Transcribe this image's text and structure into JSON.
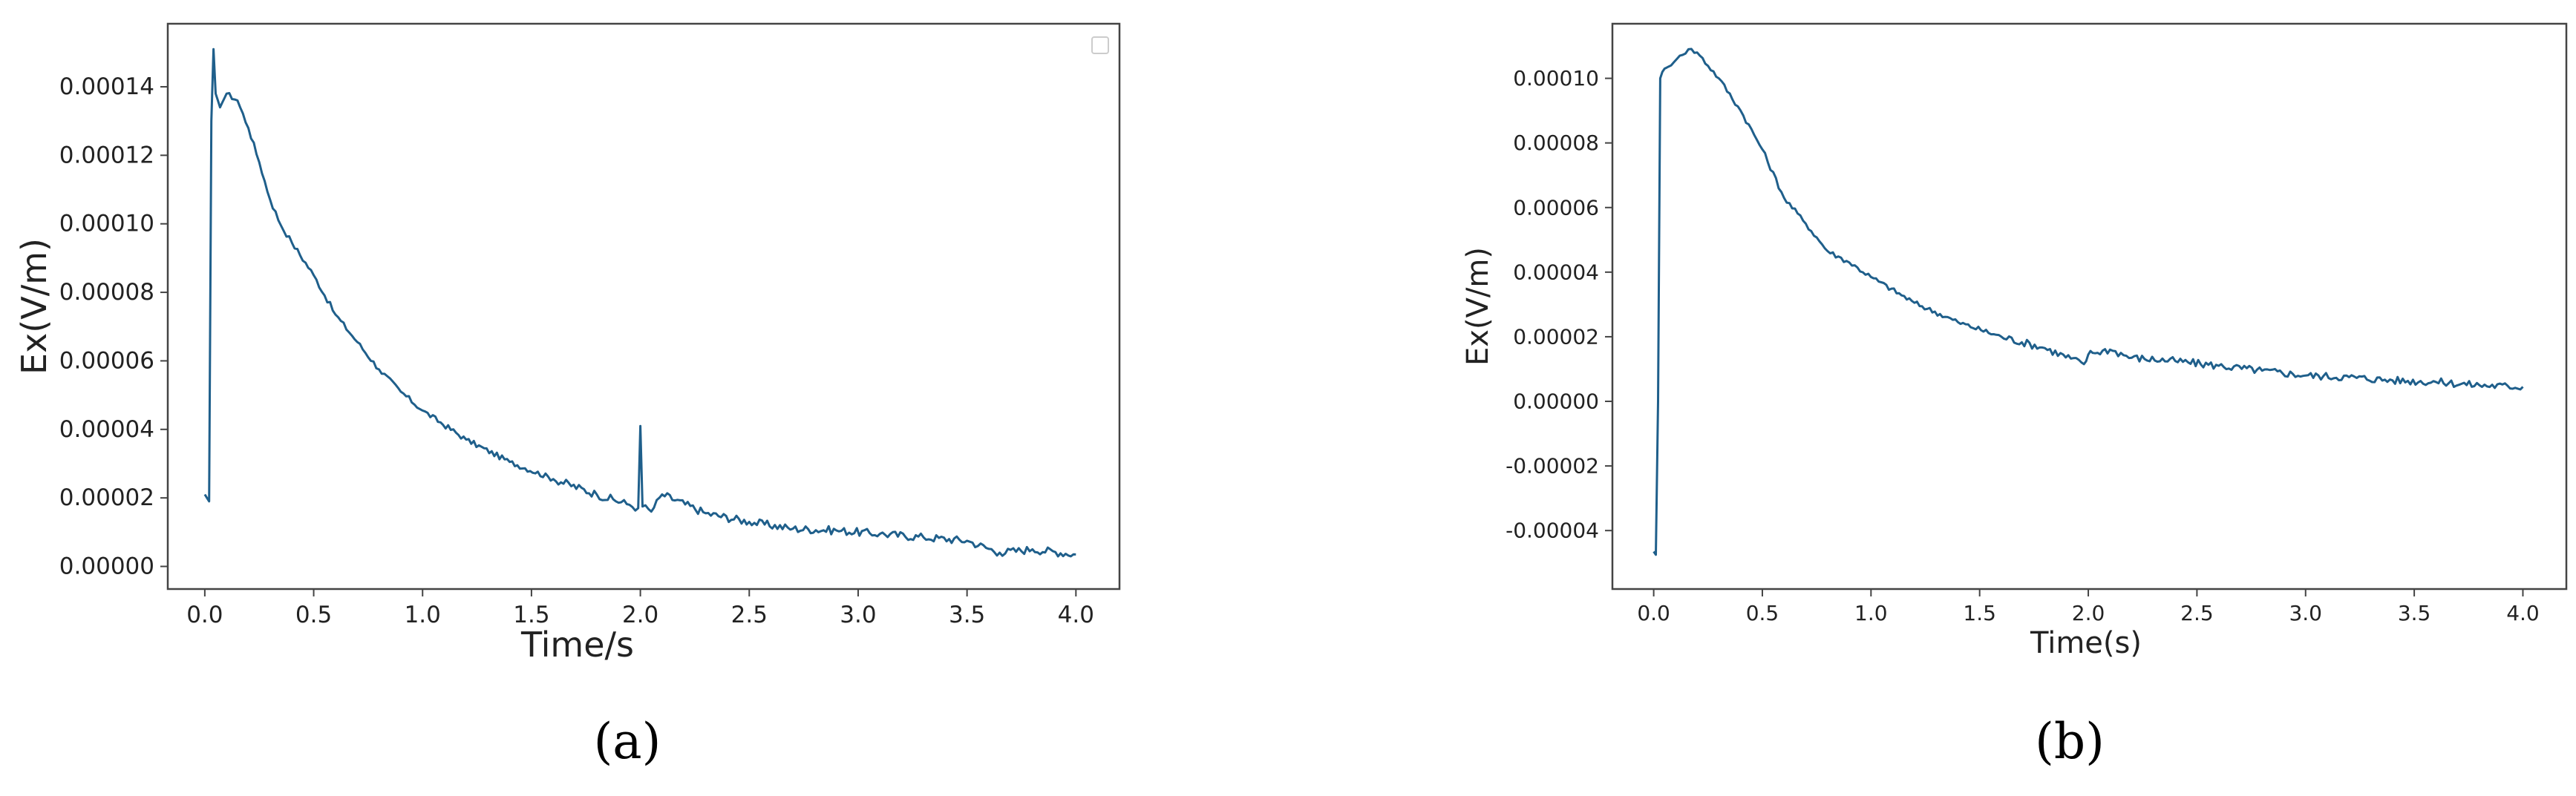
{
  "chart_data": [
    {
      "type": "line",
      "panel_label": "(a)",
      "xlabel": "Time/s",
      "ylabel": "Ex(V/m)",
      "xlim": [
        -0.17,
        4.2
      ],
      "ylim": [
        -6.6e-06,
        0.0001584
      ],
      "x_ticks": [
        "0.0",
        "0.5",
        "1.0",
        "1.5",
        "2.0",
        "2.5",
        "3.0",
        "3.5",
        "4.0"
      ],
      "y_ticks": [
        "0.00000",
        "0.00002",
        "0.00004",
        "0.00006",
        "0.00008",
        "0.00010",
        "0.00012",
        "0.00014"
      ],
      "legend": "empty box, top-right",
      "line_color": "#1f5f8b",
      "x": [
        0.0,
        0.02,
        0.03,
        0.04,
        0.05,
        0.07,
        0.1,
        0.15,
        0.2,
        0.25,
        0.3,
        0.35,
        0.4,
        0.5,
        0.6,
        0.7,
        0.8,
        0.9,
        1.0,
        1.2,
        1.4,
        1.6,
        1.8,
        1.95,
        1.99,
        2.0,
        2.01,
        2.05,
        2.1,
        2.3,
        2.5,
        2.7,
        2.9,
        3.1,
        3.3,
        3.5,
        3.65,
        3.8,
        4.0
      ],
      "y": [
        2.1e-05,
        1.9e-05,
        0.00013,
        0.000151,
        0.000138,
        0.000134,
        0.000138,
        0.000136,
        0.000128,
        0.000118,
        0.000107,
        9.95e-05,
        9.45e-05,
        8.5e-05,
        7.35e-05,
        6.55e-05,
        5.75e-05,
        5.1e-05,
        4.55e-05,
        3.7e-05,
        3.05e-05,
        2.55e-05,
        2.1e-05,
        1.8e-05,
        1.7e-05,
        4.1e-05,
        1.75e-05,
        1.6e-05,
        2.1e-05,
        1.55e-05,
        1.3e-05,
        1.1e-05,
        1.05e-05,
        9.5e-06,
        8.5e-06,
        7.5e-06,
        4e-06,
        5e-06,
        3.5e-06
      ]
    },
    {
      "type": "line",
      "panel_label": "(b)",
      "xlabel": "Time(s)",
      "ylabel": "Ex(V/m)",
      "xlim": [
        -0.19,
        4.2
      ],
      "ylim": [
        -5.81e-05,
        0.0001169
      ],
      "x_ticks": [
        "0.0",
        "0.5",
        "1.0",
        "1.5",
        "2.0",
        "2.5",
        "3.0",
        "3.5",
        "4.0"
      ],
      "y_ticks": [
        "-0.00004",
        "-0.00002",
        "0.00000",
        "0.00002",
        "0.00004",
        "0.00006",
        "0.00008",
        "0.00010"
      ],
      "line_color": "#1f5f8b",
      "x": [
        0.0,
        0.01,
        0.02,
        0.03,
        0.04,
        0.05,
        0.08,
        0.12,
        0.16,
        0.2,
        0.3,
        0.4,
        0.5,
        0.6,
        0.7,
        0.8,
        0.9,
        1.0,
        1.2,
        1.4,
        1.6,
        1.8,
        1.98,
        2.0,
        2.02,
        2.1,
        2.2,
        2.4,
        2.6,
        2.8,
        3.0,
        3.2,
        3.4,
        3.6,
        3.8,
        4.0
      ],
      "y": [
        -4.65e-05,
        -4.75e-05,
        0.0,
        0.0001,
        0.000102,
        0.000103,
        0.000104,
        0.000107,
        0.000109,
        0.000108,
        0.0001,
        9e-05,
        7.8e-05,
        6.3e-05,
        5.5e-05,
        4.65e-05,
        4.3e-05,
        3.85e-05,
        3.05e-05,
        2.45e-05,
        2e-05,
        1.65e-05,
        1.15e-05,
        1.45e-05,
        1.5e-05,
        1.6e-05,
        1.35e-05,
        1.25e-05,
        1.1e-05,
        9.5e-06,
        8e-06,
        7.5e-06,
        6.5e-06,
        6e-06,
        5e-06,
        4.5e-06
      ]
    }
  ]
}
